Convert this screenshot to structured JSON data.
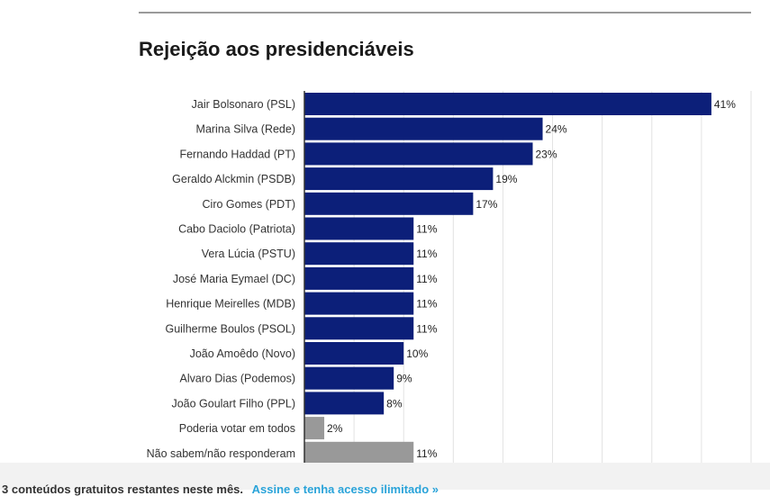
{
  "colors": {
    "candidate_bar": "#0c1f79",
    "other_bar": "#999999",
    "grid": "#e2e2e2",
    "axis": "#333333",
    "link": "#29a3d9"
  },
  "chart_data": {
    "type": "bar",
    "orientation": "horizontal",
    "title": "Rejeição aos presidenciáveis",
    "xlabel": "",
    "ylabel": "",
    "xlim": [
      0,
      45
    ],
    "grid": true,
    "value_suffix": "%",
    "categories": [
      "Jair Bolsonaro (PSL)",
      "Marina Silva (Rede)",
      "Fernando Haddad (PT)",
      "Geraldo Alckmin (PSDB)",
      "Ciro Gomes (PDT)",
      "Cabo Daciolo (Patriota)",
      "Vera Lúcia (PSTU)",
      "José Maria Eymael (DC)",
      "Henrique Meirelles (MDB)",
      "Guilherme Boulos (PSOL)",
      "João Amoêdo (Novo)",
      "Alvaro Dias (Podemos)",
      "João Goulart Filho (PPL)",
      "Poderia votar em todos",
      "Não sabem/não responderam"
    ],
    "values": [
      41,
      24,
      23,
      19,
      17,
      11,
      11,
      11,
      11,
      11,
      10,
      9,
      8,
      2,
      11
    ],
    "bar_group": [
      "candidate",
      "candidate",
      "candidate",
      "candidate",
      "candidate",
      "candidate",
      "candidate",
      "candidate",
      "candidate",
      "candidate",
      "candidate",
      "candidate",
      "candidate",
      "other",
      "other"
    ]
  },
  "footer": {
    "text": "3 conteúdos gratuitos restantes neste mês.",
    "link": "Assine e tenha acesso ilimitado »"
  }
}
